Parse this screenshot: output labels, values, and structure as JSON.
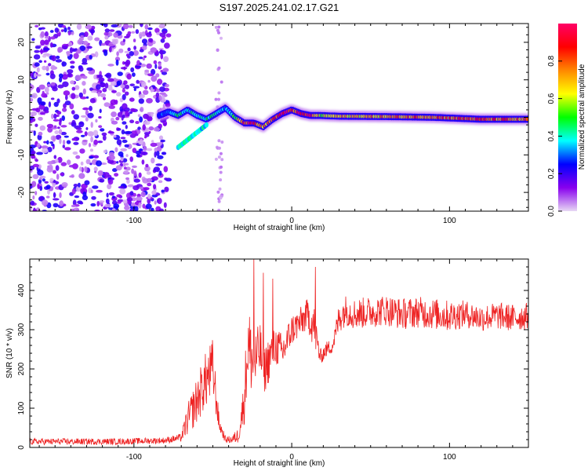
{
  "title": "S197.2025.241.02.17.G21",
  "chart_data": [
    {
      "type": "heatmap",
      "name": "spectrogram",
      "xlabel": "Height of straight line (km)",
      "ylabel": "Frequency (Hz)",
      "xlim": [
        -166,
        150
      ],
      "ylim": [
        -25,
        25
      ],
      "xticks": [
        -100,
        0,
        100
      ],
      "xtick_labels": [
        "-100",
        "0",
        "100"
      ],
      "yticks": [
        20,
        10,
        0,
        -10,
        -20
      ],
      "ytick_labels": [
        "20",
        "10",
        "0",
        "-10",
        "-20"
      ],
      "ridge": {
        "x": [
          -84,
          -78,
          -72,
          -66,
          -60,
          -54,
          -48,
          -42,
          -36,
          -30,
          -24,
          -18,
          -12,
          -6,
          0,
          6,
          12,
          18,
          30,
          60,
          90,
          120,
          150
        ],
        "y": [
          0.5,
          1.5,
          0.5,
          2.0,
          0.5,
          -0.5,
          1.0,
          2.5,
          0.0,
          -1.5,
          -1.5,
          -2.5,
          -0.5,
          1.0,
          2.0,
          1.0,
          0.5,
          0.5,
          0.3,
          0.2,
          0.0,
          -0.5,
          -0.5
        ],
        "peak_amplitude": [
          0.3,
          0.35,
          0.45,
          0.4,
          0.45,
          0.45,
          0.45,
          0.35,
          0.55,
          0.9,
          0.95,
          0.7,
          0.85,
          0.95,
          0.9,
          0.9,
          0.95,
          0.6,
          0.7,
          0.75,
          0.85,
          0.85,
          0.75
        ]
      },
      "secondary_branch": {
        "x": [
          -72,
          -66,
          -60,
          -54
        ],
        "y": [
          -8,
          -6,
          -4,
          -2
        ]
      },
      "noise_region_km": [
        -166,
        -78
      ]
    },
    {
      "type": "line",
      "name": "snr",
      "xlabel": "Height of straight line (km)",
      "ylabel": "SNR (10 * v/v)",
      "xlim": [
        -166,
        150
      ],
      "ylim": [
        0,
        480
      ],
      "xticks": [
        -100,
        0,
        100
      ],
      "xtick_labels": [
        "-100",
        "0",
        "100"
      ],
      "yticks": [
        0,
        100,
        200,
        300,
        400
      ],
      "ytick_labels": [
        "0",
        "100",
        "200",
        "300",
        "400"
      ],
      "series": [
        {
          "name": "SNR",
          "color": "#ee2222",
          "x": [
            -166,
            -140,
            -110,
            -80,
            -70,
            -66,
            -60,
            -56,
            -50,
            -46,
            -42,
            -38,
            -34,
            -30,
            -28,
            -24,
            -20,
            -18,
            -14,
            -10,
            -6,
            0,
            6,
            10,
            14,
            18,
            22,
            26,
            30,
            34,
            40,
            50,
            60,
            70,
            80,
            90,
            100,
            110,
            120,
            130,
            140,
            150
          ],
          "y": [
            15,
            15,
            15,
            18,
            25,
            70,
            120,
            160,
            200,
            60,
            20,
            20,
            30,
            120,
            260,
            210,
            250,
            190,
            230,
            260,
            240,
            300,
            320,
            340,
            310,
            230,
            250,
            260,
            330,
            350,
            340,
            345,
            350,
            340,
            345,
            340,
            335,
            340,
            330,
            335,
            330,
            335
          ],
          "jitter_amplitude": [
            8,
            8,
            8,
            8,
            10,
            40,
            60,
            70,
            80,
            20,
            8,
            10,
            20,
            60,
            120,
            80,
            70,
            60,
            60,
            50,
            50,
            40,
            40,
            40,
            60,
            20,
            20,
            20,
            40,
            40,
            40,
            40,
            40,
            40,
            40,
            40,
            40,
            35,
            35,
            35,
            35,
            35
          ],
          "spikes": [
            {
              "x": -24,
              "y": 485
            },
            {
              "x": -18,
              "y": 445
            },
            {
              "x": -12,
              "y": 430
            },
            {
              "x": 15,
              "y": 460
            }
          ]
        }
      ]
    }
  ],
  "colorbar": {
    "label": "Normalized spectral amplitude",
    "range": [
      0,
      1
    ],
    "ticks": [
      0.0,
      0.2,
      0.4,
      0.6,
      0.8
    ],
    "tick_labels": [
      "0.0",
      "0.2",
      "0.4",
      "0.6",
      "0.8"
    ],
    "stops": [
      "#e8d8f4",
      "#8800ee",
      "#0000ff",
      "#00ffff",
      "#00ff00",
      "#ffff00",
      "#ff8800",
      "#ff0000",
      "#ff0066"
    ]
  }
}
